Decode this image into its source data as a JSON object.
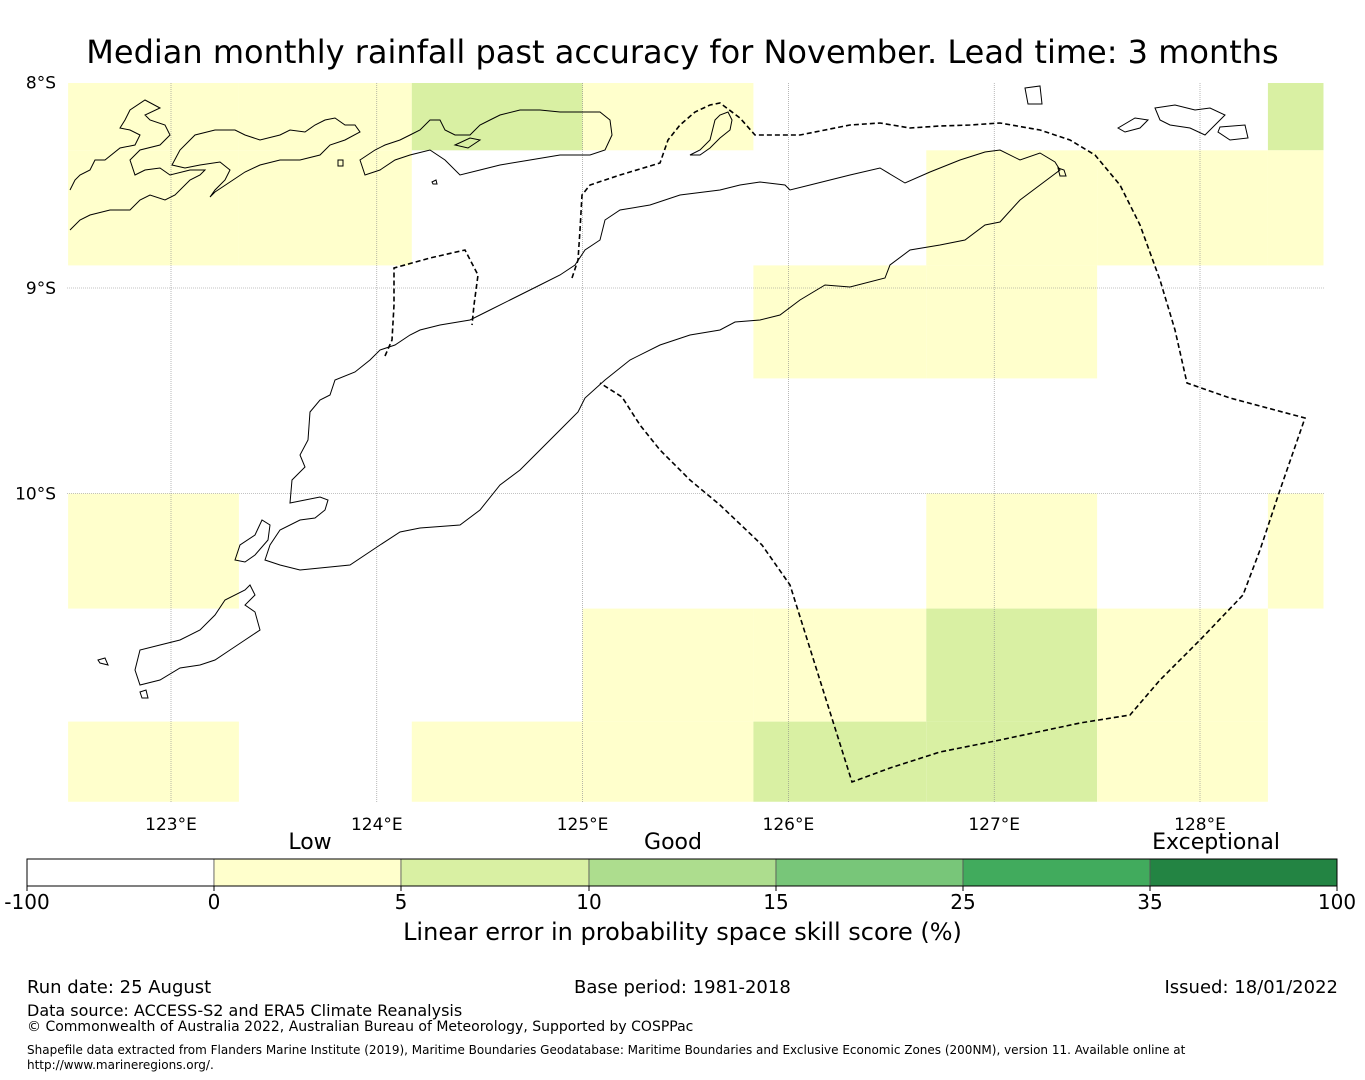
{
  "title": "Median monthly rainfall past accuracy for November. Lead time: 3 months",
  "lat_labels": [
    "8°S",
    "9°S",
    "10°S"
  ],
  "lon_labels": [
    "123°E",
    "124°E",
    "125°E",
    "126°E",
    "127°E",
    "128°E"
  ],
  "skill_grid": {
    "lon_edges": [
      122.5,
      123.33,
      124.17,
      125.0,
      125.83,
      126.67,
      127.5,
      128.33,
      128.6
    ],
    "lat_rows": [
      {
        "lat_top": -7.99,
        "lat_bottom": -8.33,
        "cells": [
          "low",
          "low",
          "good",
          "low",
          "none",
          "none",
          "none",
          "good"
        ]
      },
      {
        "lat_top": -8.33,
        "lat_bottom": -8.89,
        "cells": [
          "low",
          "low",
          "none",
          "none",
          "none",
          "low",
          "low",
          "low"
        ]
      },
      {
        "lat_top": -8.89,
        "lat_bottom": -9.44,
        "cells": [
          "none",
          "none",
          "none",
          "none",
          "low",
          "low",
          "none",
          "none"
        ]
      },
      {
        "lat_top": -9.44,
        "lat_bottom": -10.0,
        "cells": [
          "none",
          "none",
          "none",
          "none",
          "none",
          "none",
          "none",
          "none"
        ]
      },
      {
        "lat_top": -10.0,
        "lat_bottom": -10.56,
        "cells": [
          "low",
          "none",
          "none",
          "none",
          "none",
          "low",
          "none",
          "low"
        ]
      },
      {
        "lat_top": -10.56,
        "lat_bottom": -11.11,
        "cells": [
          "none",
          "none",
          "none",
          "low",
          "low",
          "good",
          "low",
          "none"
        ]
      },
      {
        "lat_top": -11.11,
        "lat_bottom": -11.5,
        "cells": [
          "low",
          "none",
          "low",
          "low",
          "good",
          "good",
          "low",
          "none"
        ]
      }
    ]
  },
  "colorbar": {
    "category_labels": [
      "Low",
      "Good",
      "Exceptional"
    ],
    "ticks": [
      "-100",
      "0",
      "5",
      "10",
      "15",
      "25",
      "35",
      "100"
    ],
    "colors": [
      "#ffffff",
      "#ffffcc",
      "#d9f0a3",
      "#addd8e",
      "#78c679",
      "#41ab5d",
      "#238443"
    ],
    "title": "Linear error in probability space skill score (%)"
  },
  "footer": {
    "run_date": "Run date: 25 August",
    "base_period": "Base period: 1981-2018",
    "issued": "Issued: 18/01/2022",
    "data_source": "Data source: ACCESS-S2 and ERA5 Climate Reanalysis",
    "copyright": "© Commonwealth of Australia 2022, Australian Bureau of Meteorology, Supported by COSPPac",
    "shapefile": "Shapefile data extracted from Flanders Marine Institute (2019), Maritime Boundaries Geodatabase: Maritime Boundaries and Exclusive Economic Zones (200NM), version 11. Available online at http://www.marineregions.org/."
  }
}
